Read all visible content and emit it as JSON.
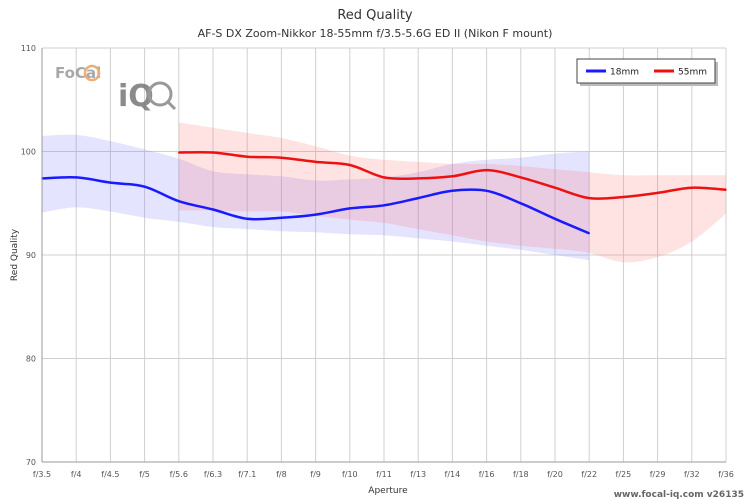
{
  "chart_data": {
    "type": "line",
    "title": "Red Quality",
    "subtitle": "AF-S DX Zoom-Nikkor 18-55mm f/3.5-5.6G ED II (Nikon F mount)",
    "xlabel": "Aperture",
    "ylabel": "Red Quality",
    "categories": [
      "f/3.5",
      "f/4",
      "f/4.5",
      "f/5",
      "f/5.6",
      "f/6.3",
      "f/7.1",
      "f/8",
      "f/9",
      "f/10",
      "f/11",
      "f/13",
      "f/14",
      "f/16",
      "f/18",
      "f/20",
      "f/22",
      "f/25",
      "f/29",
      "f/32",
      "f/36"
    ],
    "ylim": [
      70,
      110
    ],
    "yticks": [
      "70",
      "80",
      "90",
      "100",
      "110"
    ],
    "grid": true,
    "legend_position": "top-right",
    "series": [
      {
        "name": "18mm",
        "color": "#1a1aff",
        "values": [
          97.4,
          97.5,
          97.0,
          96.6,
          95.2,
          94.4,
          93.5,
          93.6,
          93.9,
          94.5,
          94.8,
          95.5,
          96.2,
          96.2,
          95.0,
          93.5,
          92.1,
          null,
          null,
          null,
          null
        ],
        "band_upper": [
          101.5,
          101.6,
          101.0,
          100.2,
          99.3,
          98.1,
          97.8,
          97.6,
          97.2,
          97.3,
          97.5,
          98.0,
          98.8,
          99.2,
          99.4,
          99.8,
          100.0,
          null,
          null,
          null,
          null
        ],
        "band_lower": [
          94.1,
          94.6,
          94.2,
          93.6,
          93.2,
          92.7,
          92.5,
          92.3,
          92.2,
          92.0,
          91.9,
          91.6,
          91.3,
          90.9,
          90.5,
          90.0,
          89.5,
          null,
          null,
          null,
          null
        ]
      },
      {
        "name": "55mm",
        "color": "#ee1111",
        "values": [
          null,
          null,
          null,
          null,
          99.9,
          99.9,
          99.5,
          99.4,
          99.0,
          98.7,
          97.5,
          97.4,
          97.6,
          98.2,
          97.5,
          96.5,
          95.5,
          95.6,
          96.0,
          96.5,
          96.3
        ],
        "band_upper": [
          null,
          null,
          null,
          null,
          102.8,
          102.3,
          101.8,
          101.3,
          100.5,
          99.6,
          99.2,
          99.0,
          98.8,
          98.8,
          98.6,
          98.3,
          98.0,
          97.7,
          97.7,
          97.7,
          97.7
        ],
        "band_lower": [
          null,
          null,
          null,
          null,
          94.3,
          94.3,
          94.2,
          94.2,
          93.8,
          93.4,
          93.1,
          92.5,
          91.9,
          91.3,
          90.9,
          90.6,
          90.2,
          89.3,
          89.8,
          91.3,
          94.0
        ]
      }
    ]
  },
  "watermark": {
    "logo_text_top": "FoCal",
    "logo_text_bottom": "iQ",
    "footer": "www.focal-iq.com v26135"
  }
}
